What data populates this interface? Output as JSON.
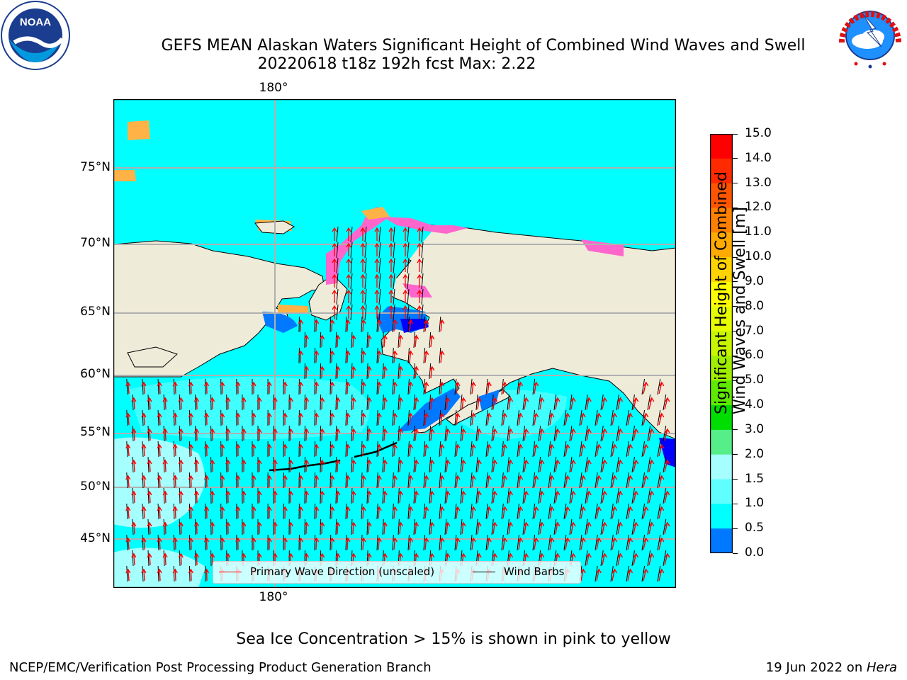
{
  "title": {
    "line1": "GEFS MEAN Alaskan Waters Significant Height of Combined Wind Waves and Swell",
    "line2": "20220618 t18z 192h fcst   Max: 2.22"
  },
  "logos": {
    "left": {
      "name": "NOAA",
      "icon": "noaa-logo",
      "text": "NOAA"
    },
    "right": {
      "name": "NATIONAL WEATHER SERVICE",
      "icon": "nws-logo"
    }
  },
  "map": {
    "lon_label_top": "180°",
    "lon_label_bottom": "180°",
    "lat_labels": [
      "75°N",
      "70°N",
      "65°N",
      "60°N",
      "55°N",
      "50°N",
      "45°N"
    ],
    "colors": {
      "land": "#efebd9",
      "ocean_fill": "#00ffff",
      "ocean_light": "#a6ffff",
      "ocean_mid": "#3fffff",
      "shallow": "#0078ff",
      "deep_blue": "#0000ff",
      "ice_pink": "#ff66cc",
      "ice_orange": "#ffb347",
      "ice_yellow": "#ffee44",
      "arrow": "#ff0000",
      "barb": "#000000",
      "grid": "#b0b0b0"
    }
  },
  "legend": {
    "primary_wave": "Primary Wave Direction (unscaled)",
    "wind_barbs": "Wind Barbs"
  },
  "colorbar": {
    "title_line1": "Significant Height of Combined",
    "title_line2": "Wind Waves and Swell [m]",
    "ticks": [
      "15.0",
      "14.0",
      "13.0",
      "12.0",
      "11.0",
      "10.0",
      "9.0",
      "8.0",
      "7.0",
      "6.0",
      "5.0",
      "4.0",
      "3.0",
      "2.0",
      "1.5",
      "1.0",
      "0.5",
      "0.0"
    ],
    "colors": [
      "#ff0000",
      "#ff2a00",
      "#ff5500",
      "#ff8000",
      "#ffaa00",
      "#ffd400",
      "#ffff00",
      "#e6ff00",
      "#c8f500",
      "#a0ef00",
      "#5fe800",
      "#00dd00",
      "#55ee88",
      "#a6ffff",
      "#5fffff",
      "#00ffff",
      "#0078ff",
      "#0000ff"
    ]
  },
  "caption": "Sea Ice Concentration > 15% is shown in pink to yellow",
  "footer": {
    "left": "NCEP/EMC/Verification Post Processing Product Generation Branch",
    "right_date": "19 Jun 2022 on ",
    "right_host": "Hera"
  }
}
